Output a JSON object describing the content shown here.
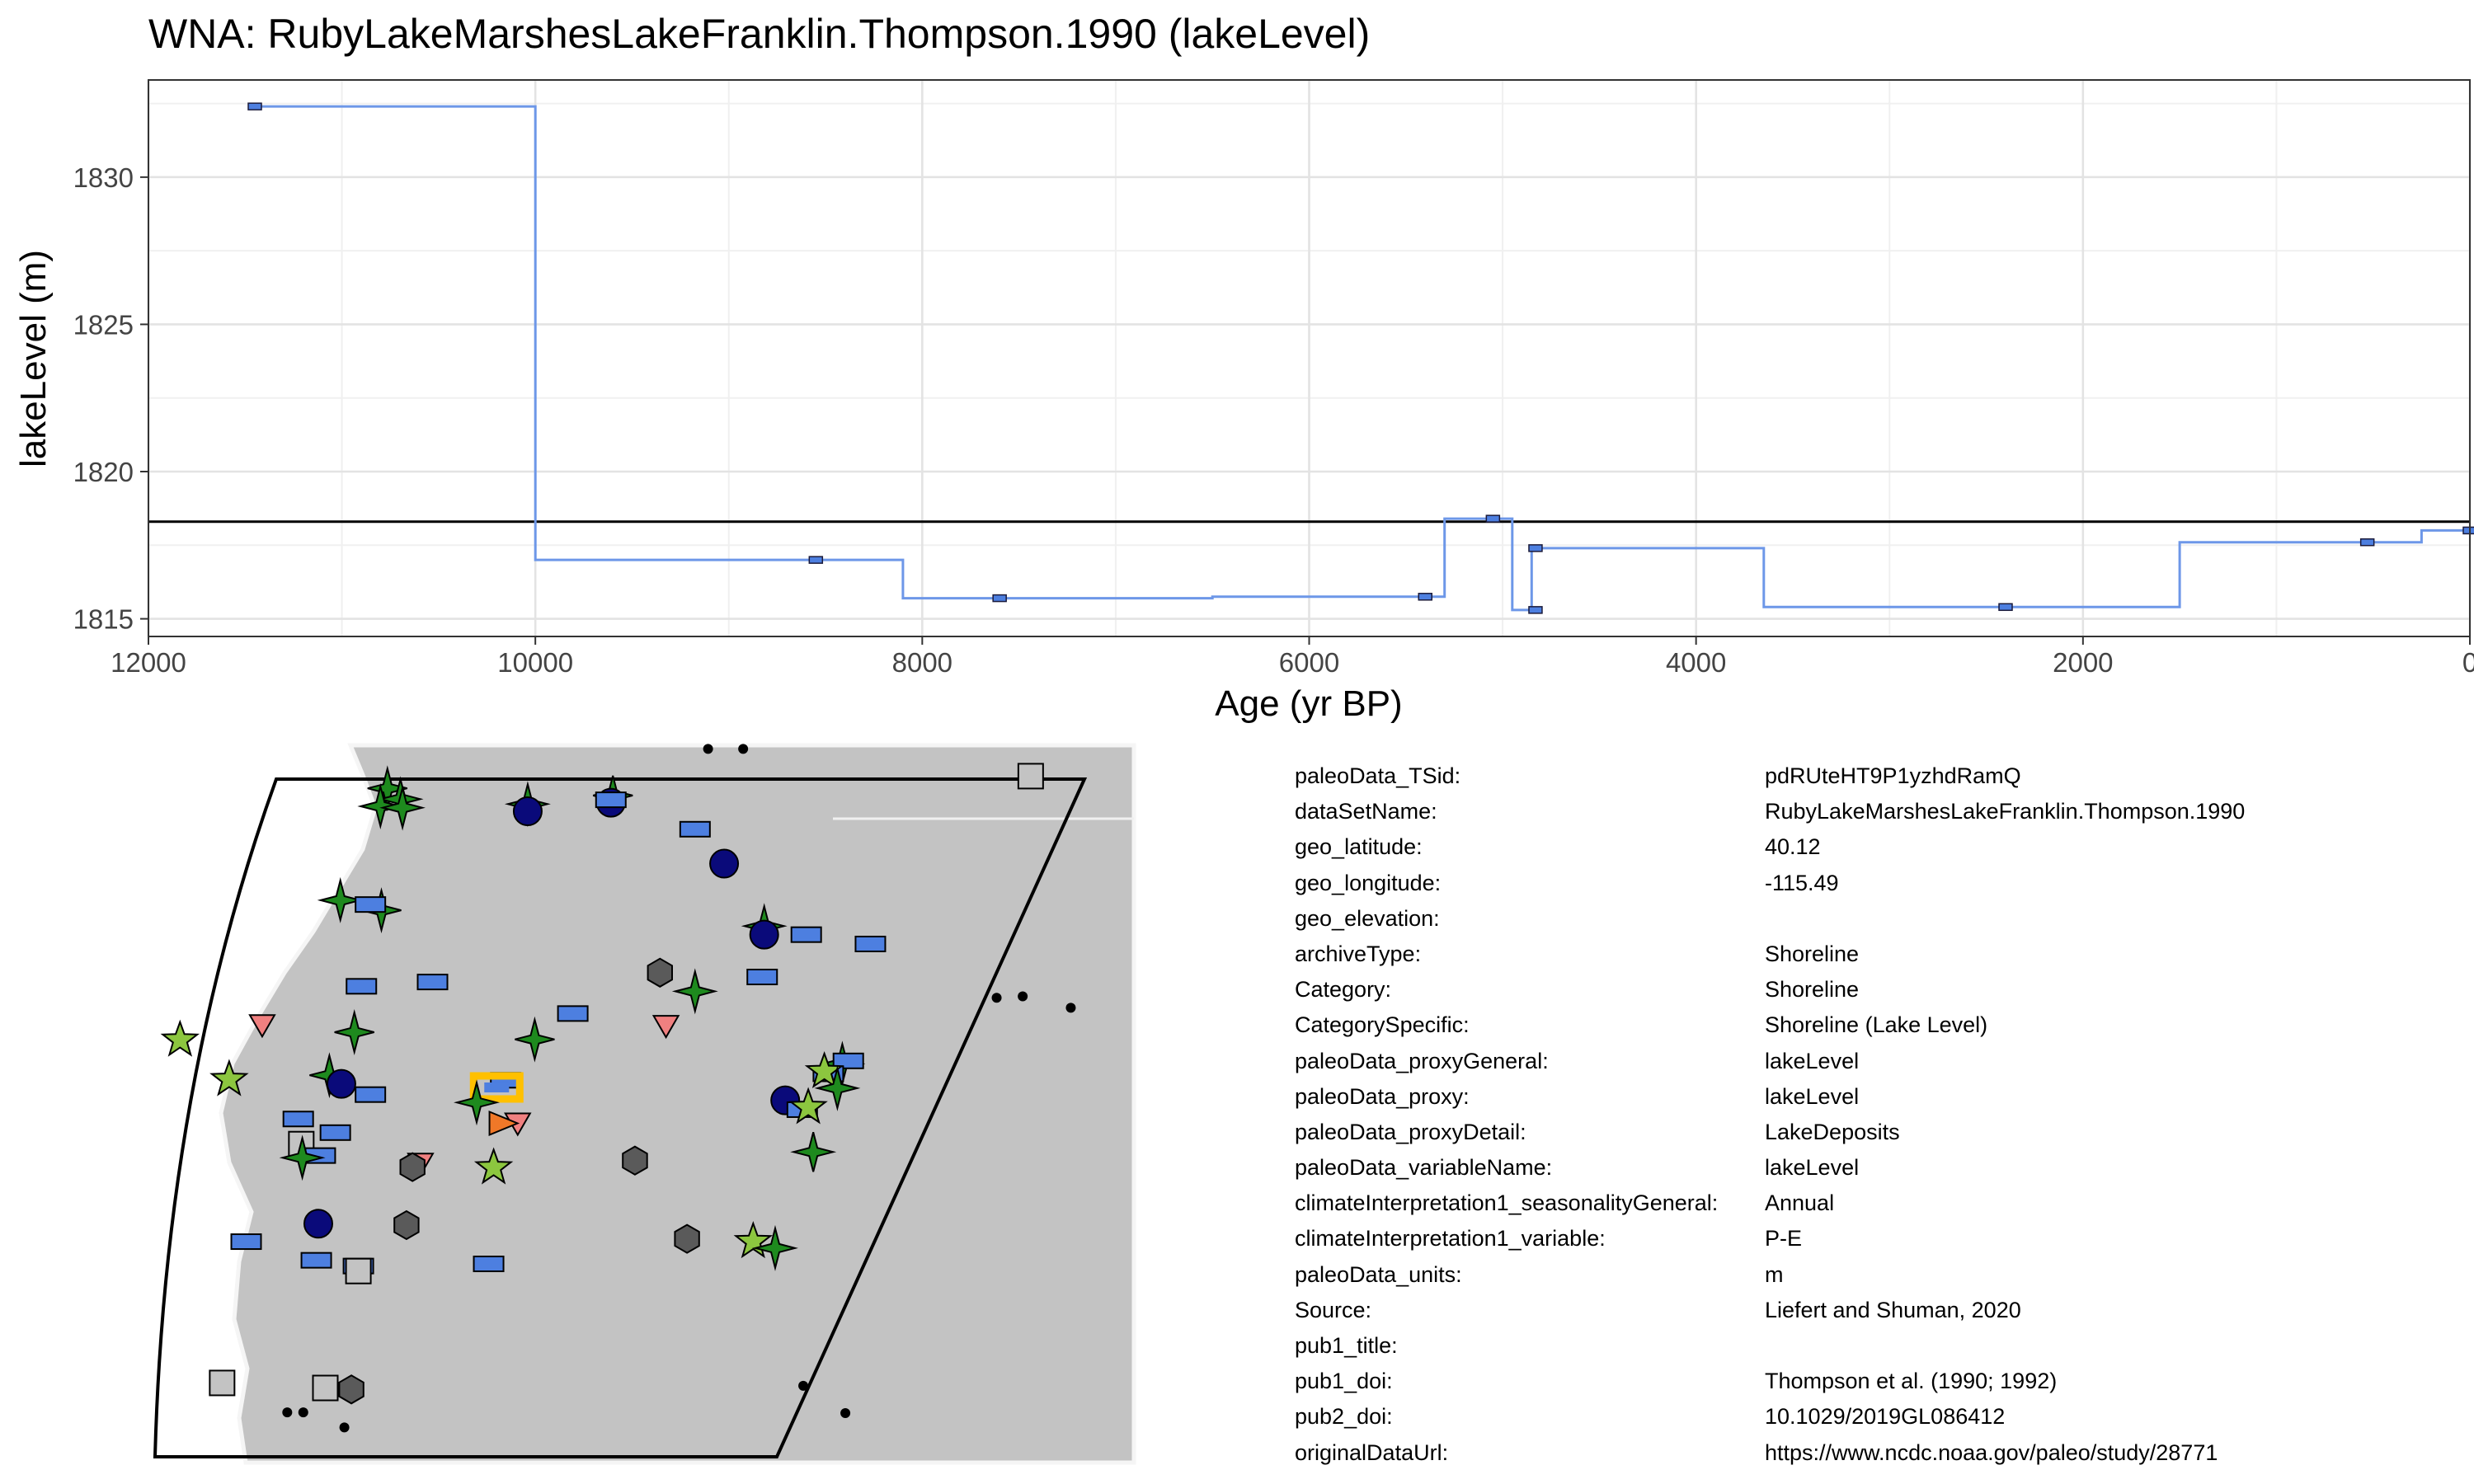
{
  "chart_data": {
    "type": "line",
    "step": true,
    "title": "WNA: RubyLakeMarshesLakeFranklin.Thompson.1990 (lakeLevel)",
    "xlabel": "Age (yr BP)",
    "ylabel": "lakeLevel (m)",
    "x_reversed": true,
    "xlim": [
      12000,
      0
    ],
    "ylim": [
      1814.4,
      1833.3
    ],
    "x_ticks": [
      "12000",
      "10000",
      "8000",
      "6000",
      "4000",
      "2000",
      "0"
    ],
    "x_tick_values": [
      12000,
      10000,
      8000,
      6000,
      4000,
      2000,
      0
    ],
    "y_ticks": [
      "1815",
      "1820",
      "1825",
      "1830"
    ],
    "y_tick_values": [
      1815,
      1820,
      1825,
      1830
    ],
    "reference_line": 1818.3,
    "line_color": "#6d97e8",
    "reference_color": "#000000",
    "grid": true,
    "series": [
      {
        "step_x": [
          11450,
          10000,
          10000,
          8100,
          8100,
          6500,
          6500,
          5300,
          5300,
          4950,
          4950,
          4850,
          4850,
          3650,
          3650,
          1500,
          1500,
          250,
          250,
          0
        ],
        "step_y": [
          1832.4,
          1832.4,
          1817.0,
          1817.0,
          1815.7,
          1815.7,
          1815.75,
          1815.75,
          1818.4,
          1818.4,
          1815.3,
          1815.3,
          1817.4,
          1817.4,
          1815.4,
          1815.4,
          1817.6,
          1817.6,
          1818.0,
          1818.0
        ],
        "points_x": [
          11450,
          8550,
          7600,
          5400,
          5050,
          4830,
          4830,
          2400,
          530,
          0
        ],
        "points_y": [
          1832.4,
          1817.0,
          1815.7,
          1815.75,
          1818.4,
          1817.4,
          1815.3,
          1815.4,
          1817.6,
          1818.0
        ]
      }
    ]
  },
  "map": {
    "land_color": "#c3c3c3",
    "markers": [
      {
        "shape": "star4",
        "color": "#1e8a1e",
        "x": 0.255,
        "y": 0.06
      },
      {
        "shape": "star4",
        "color": "#1e8a1e",
        "x": 0.268,
        "y": 0.075
      },
      {
        "shape": "star4",
        "color": "#1e8a1e",
        "x": 0.248,
        "y": 0.085
      },
      {
        "shape": "star4",
        "color": "#1e8a1e",
        "x": 0.27,
        "y": 0.087
      },
      {
        "shape": "star4",
        "color": "#1e8a1e",
        "x": 0.395,
        "y": 0.082
      },
      {
        "shape": "circle",
        "color": "#0a0a7a",
        "x": 0.395,
        "y": 0.092
      },
      {
        "shape": "star4",
        "color": "#1e8a1e",
        "x": 0.48,
        "y": 0.07
      },
      {
        "shape": "circle",
        "color": "#0a0a7a",
        "x": 0.478,
        "y": 0.08
      },
      {
        "shape": "rect",
        "color": "#4d7fe0",
        "x": 0.478,
        "y": 0.076
      },
      {
        "shape": "rect",
        "color": "#4d7fe0",
        "x": 0.562,
        "y": 0.117
      },
      {
        "shape": "circle",
        "color": "#0a0a7a",
        "x": 0.591,
        "y": 0.165
      },
      {
        "shape": "star4",
        "color": "#1e8a1e",
        "x": 0.208,
        "y": 0.216
      },
      {
        "shape": "star4",
        "color": "#1e8a1e",
        "x": 0.249,
        "y": 0.23
      },
      {
        "shape": "rect",
        "color": "#4d7fe0",
        "x": 0.238,
        "y": 0.222
      },
      {
        "shape": "star4",
        "color": "#1e8a1e",
        "x": 0.631,
        "y": 0.252
      },
      {
        "shape": "circle",
        "color": "#0a0a7a",
        "x": 0.631,
        "y": 0.264
      },
      {
        "shape": "rect",
        "color": "#4d7fe0",
        "x": 0.673,
        "y": 0.264
      },
      {
        "shape": "rect",
        "color": "#4d7fe0",
        "x": 0.737,
        "y": 0.277
      },
      {
        "shape": "hexagon",
        "color": "#5a5a5a",
        "x": 0.527,
        "y": 0.317
      },
      {
        "shape": "rect",
        "color": "#4d7fe0",
        "x": 0.629,
        "y": 0.323
      },
      {
        "shape": "star4",
        "color": "#1e8a1e",
        "x": 0.562,
        "y": 0.343
      },
      {
        "shape": "rect",
        "color": "#4d7fe0",
        "x": 0.229,
        "y": 0.336
      },
      {
        "shape": "rect",
        "color": "#4d7fe0",
        "x": 0.3,
        "y": 0.33
      },
      {
        "shape": "rect",
        "color": "#4d7fe0",
        "x": 0.44,
        "y": 0.374
      },
      {
        "shape": "triangle",
        "color": "#f08080",
        "x": 0.13,
        "y": 0.39
      },
      {
        "shape": "star5",
        "color": "#8cc63f",
        "x": 0.048,
        "y": 0.411
      },
      {
        "shape": "star4",
        "color": "#1e8a1e",
        "x": 0.222,
        "y": 0.4
      },
      {
        "shape": "star4",
        "color": "#1e8a1e",
        "x": 0.402,
        "y": 0.41
      },
      {
        "shape": "triangle",
        "color": "#f08080",
        "x": 0.533,
        "y": 0.391
      },
      {
        "shape": "star4",
        "color": "#1e8a1e",
        "x": 0.197,
        "y": 0.46
      },
      {
        "shape": "circle",
        "color": "#0a0a7a",
        "x": 0.209,
        "y": 0.472
      },
      {
        "shape": "star5",
        "color": "#8cc63f",
        "x": 0.097,
        "y": 0.466
      },
      {
        "shape": "rect",
        "color": "#4d7fe0",
        "x": 0.238,
        "y": 0.487
      },
      {
        "shape": "rect",
        "color": "#4d7fe0",
        "x": 0.373,
        "y": 0.467
      },
      {
        "shape": "highlight",
        "color": "#ffc000",
        "x": 0.364,
        "y": 0.477
      },
      {
        "shape": "star4",
        "color": "#1e8a1e",
        "x": 0.344,
        "y": 0.498
      },
      {
        "shape": "triangle",
        "color": "#f08080",
        "x": 0.385,
        "y": 0.527
      },
      {
        "shape": "triangle-right",
        "color": "#f07828",
        "x": 0.37,
        "y": 0.527
      },
      {
        "shape": "star4",
        "color": "#1e8a1e",
        "x": 0.709,
        "y": 0.444
      },
      {
        "shape": "rect",
        "color": "#4d7fe0",
        "x": 0.715,
        "y": 0.44
      },
      {
        "shape": "rect",
        "color": "#4d7fe0",
        "x": 0.695,
        "y": 0.458
      },
      {
        "shape": "star5",
        "color": "#8cc63f",
        "x": 0.691,
        "y": 0.455
      },
      {
        "shape": "star4",
        "color": "#1e8a1e",
        "x": 0.704,
        "y": 0.478
      },
      {
        "shape": "circle",
        "color": "#0a0a7a",
        "x": 0.652,
        "y": 0.495
      },
      {
        "shape": "rect",
        "color": "#4d7fe0",
        "x": 0.669,
        "y": 0.508
      },
      {
        "shape": "star5",
        "color": "#8cc63f",
        "x": 0.675,
        "y": 0.505
      },
      {
        "shape": "rect",
        "color": "#4d7fe0",
        "x": 0.166,
        "y": 0.521
      },
      {
        "shape": "rect",
        "color": "#4d7fe0",
        "x": 0.203,
        "y": 0.54
      },
      {
        "shape": "square",
        "color": "#c3c3c3",
        "x": 0.169,
        "y": 0.556
      },
      {
        "shape": "rect",
        "color": "#4d7fe0",
        "x": 0.188,
        "y": 0.572
      },
      {
        "shape": "star4",
        "color": "#1e8a1e",
        "x": 0.17,
        "y": 0.575
      },
      {
        "shape": "triangle",
        "color": "#f08080",
        "x": 0.288,
        "y": 0.583
      },
      {
        "shape": "hexagon",
        "color": "#5a5a5a",
        "x": 0.28,
        "y": 0.588
      },
      {
        "shape": "star5",
        "color": "#8cc63f",
        "x": 0.361,
        "y": 0.589
      },
      {
        "shape": "hexagon",
        "color": "#5a5a5a",
        "x": 0.502,
        "y": 0.579
      },
      {
        "shape": "star4",
        "color": "#1e8a1e",
        "x": 0.68,
        "y": 0.567
      },
      {
        "shape": "circle",
        "color": "#0a0a7a",
        "x": 0.186,
        "y": 0.667
      },
      {
        "shape": "hexagon",
        "color": "#5a5a5a",
        "x": 0.274,
        "y": 0.669
      },
      {
        "shape": "rect",
        "color": "#4d7fe0",
        "x": 0.114,
        "y": 0.692
      },
      {
        "shape": "rect",
        "color": "#4d7fe0",
        "x": 0.184,
        "y": 0.718
      },
      {
        "shape": "rect",
        "color": "#4d7fe0",
        "x": 0.226,
        "y": 0.726
      },
      {
        "shape": "square",
        "color": "#c3c3c3",
        "x": 0.226,
        "y": 0.733
      },
      {
        "shape": "rect",
        "color": "#4d7fe0",
        "x": 0.356,
        "y": 0.723
      },
      {
        "shape": "hexagon",
        "color": "#5a5a5a",
        "x": 0.554,
        "y": 0.688
      },
      {
        "shape": "star5",
        "color": "#8cc63f",
        "x": 0.62,
        "y": 0.692
      },
      {
        "shape": "star4",
        "color": "#1e8a1e",
        "x": 0.642,
        "y": 0.701
      },
      {
        "shape": "square",
        "color": "#c3c3c3",
        "x": 0.09,
        "y": 0.889
      },
      {
        "shape": "square",
        "color": "#c3c3c3",
        "x": 0.193,
        "y": 0.896
      },
      {
        "shape": "hexagon",
        "color": "#5a5a5a",
        "x": 0.219,
        "y": 0.898
      },
      {
        "shape": "square",
        "color": "#c3c3c3",
        "x": 0.897,
        "y": 0.043
      },
      {
        "shape": "dot",
        "color": "#000000",
        "x": 0.575,
        "y": 0.005
      },
      {
        "shape": "dot",
        "color": "#000000",
        "x": 0.61,
        "y": 0.005
      },
      {
        "shape": "dot",
        "color": "#000000",
        "x": 0.863,
        "y": 0.352
      },
      {
        "shape": "dot",
        "color": "#000000",
        "x": 0.889,
        "y": 0.35
      },
      {
        "shape": "dot",
        "color": "#000000",
        "x": 0.937,
        "y": 0.366
      },
      {
        "shape": "dot",
        "color": "#000000",
        "x": 0.67,
        "y": 0.893
      },
      {
        "shape": "dot",
        "color": "#000000",
        "x": 0.712,
        "y": 0.931
      },
      {
        "shape": "dot",
        "color": "#000000",
        "x": 0.155,
        "y": 0.93
      },
      {
        "shape": "dot",
        "color": "#000000",
        "x": 0.171,
        "y": 0.93
      },
      {
        "shape": "dot",
        "color": "#000000",
        "x": 0.212,
        "y": 0.951
      }
    ]
  },
  "metadata": [
    {
      "key": "paleoData_TSid:",
      "value": "pdRUteHT9P1yzhdRamQ"
    },
    {
      "key": "dataSetName:",
      "value": "RubyLakeMarshesLakeFranklin.Thompson.1990"
    },
    {
      "key": "geo_latitude:",
      "value": "40.12"
    },
    {
      "key": "geo_longitude:",
      "value": "-115.49"
    },
    {
      "key": "geo_elevation:",
      "value": ""
    },
    {
      "key": "archiveType:",
      "value": "Shoreline"
    },
    {
      "key": "Category:",
      "value": "Shoreline"
    },
    {
      "key": "CategorySpecific:",
      "value": "Shoreline (Lake Level)"
    },
    {
      "key": "paleoData_proxyGeneral:",
      "value": "lakeLevel"
    },
    {
      "key": "paleoData_proxy:",
      "value": "lakeLevel"
    },
    {
      "key": "paleoData_proxyDetail:",
      "value": "LakeDeposits"
    },
    {
      "key": "paleoData_variableName:",
      "value": "lakeLevel"
    },
    {
      "key": "climateInterpretation1_seasonalityGeneral:",
      "value": "Annual"
    },
    {
      "key": "climateInterpretation1_variable:",
      "value": "P-E"
    },
    {
      "key": "paleoData_units:",
      "value": "m"
    },
    {
      "key": "Source:",
      "value": "Liefert and Shuman, 2020"
    },
    {
      "key": "pub1_title:",
      "value": ""
    },
    {
      "key": "pub1_doi:",
      "value": "Thompson et al. (1990; 1992)"
    },
    {
      "key": "pub2_doi:",
      "value": "10.1029/2019GL086412"
    },
    {
      "key": "originalDataUrl:",
      "value": "https://www.ncdc.noaa.gov/paleo/study/28771"
    }
  ]
}
